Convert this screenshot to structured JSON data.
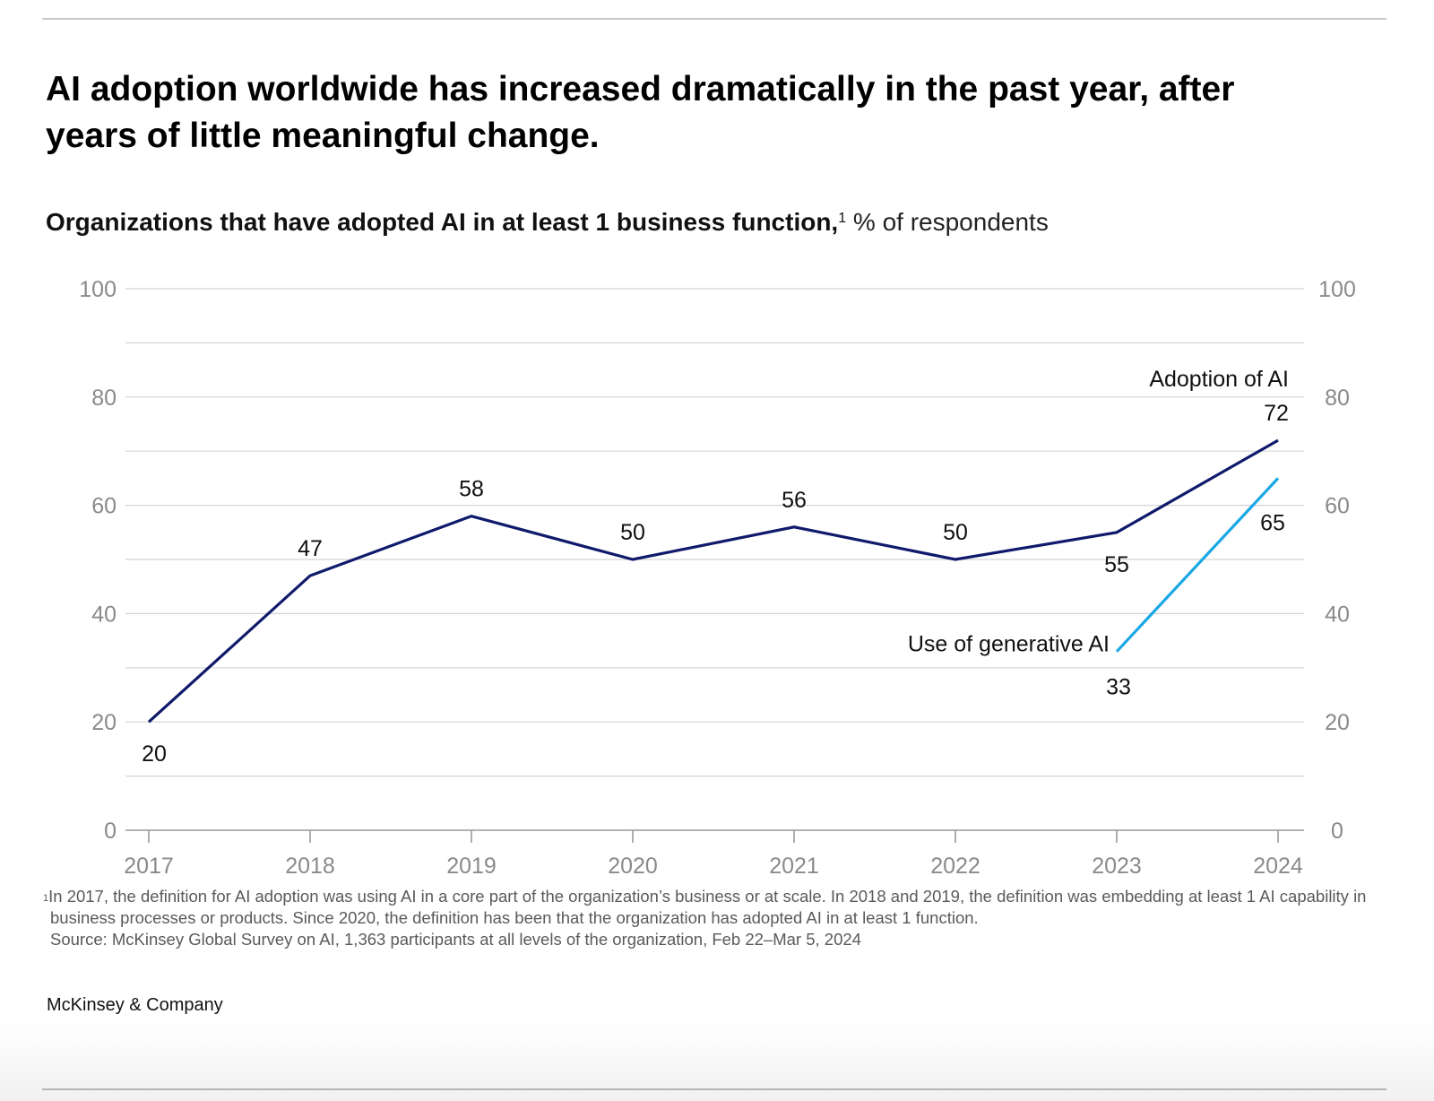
{
  "headline": "AI adoption worldwide has increased dramatically in the past year, after years of little meaningful change.",
  "subtitle": {
    "bold": "Organizations that have adopted AI in at least 1 business function,",
    "footnote_marker": "1",
    "unit": " % of respondents"
  },
  "chart_data": {
    "type": "line",
    "title": "Organizations that have adopted AI in at least 1 business function, % of respondents",
    "x": [
      "2017",
      "2018",
      "2019",
      "2020",
      "2021",
      "2022",
      "2023",
      "2024"
    ],
    "ylim": [
      0,
      100
    ],
    "y_ticks": [
      0,
      20,
      40,
      60,
      80,
      100
    ],
    "y_tick_labels": [
      "0",
      "20",
      "40",
      "60",
      "80",
      "100"
    ],
    "axis_sides": [
      "left",
      "right"
    ],
    "gridlines_every": 10,
    "series": [
      {
        "name": "Adoption of AI",
        "color": "#0f1a6b",
        "x": [
          "2017",
          "2018",
          "2019",
          "2020",
          "2021",
          "2022",
          "2023",
          "2024"
        ],
        "values": [
          20,
          47,
          58,
          50,
          56,
          50,
          55,
          72
        ],
        "data_labels": [
          "20",
          "47",
          "58",
          "50",
          "56",
          "50",
          "55",
          "72"
        ]
      },
      {
        "name": "Use of generative AI",
        "color": "#1aa7e6",
        "x": [
          "2023",
          "2024"
        ],
        "values": [
          33,
          65
        ],
        "data_labels": [
          "33",
          "65"
        ]
      }
    ]
  },
  "footnotes": {
    "marker": "1",
    "note": "In 2017, the definition for AI adoption was using AI in a core part of the organization’s business or at scale. In 2018 and 2019, the definition was embedding at least 1 AI capability in business processes or products. Since 2020, the definition has been that the organization has adopted AI in at least 1 function.",
    "source": "Source: McKinsey Global Survey on AI, 1,363 participants at all levels of the organization, Feb 22–Mar 5, 2024"
  },
  "brand": "McKinsey & Company"
}
